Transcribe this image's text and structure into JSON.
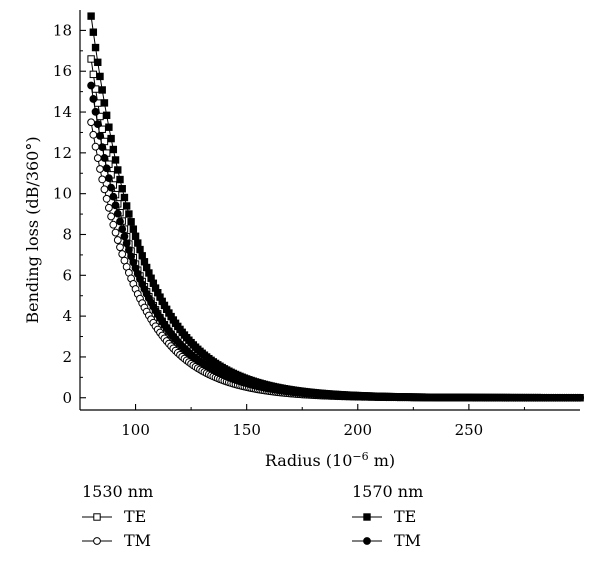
{
  "chart_data": {
    "type": "line",
    "title": "",
    "xlabel_prefix": "Radius (10",
    "xlabel_exponent": "−6",
    "xlabel_suffix": " m)",
    "ylabel": "Bending loss (dB/360°)",
    "xlim": [
      75,
      300
    ],
    "ylim": [
      -0.6,
      19
    ],
    "x_ticks": [
      100,
      150,
      200,
      250
    ],
    "x_tick_labels": [
      "100",
      "150",
      "200",
      "250"
    ],
    "y_ticks": [
      0,
      2,
      4,
      6,
      8,
      10,
      12,
      14,
      16,
      18
    ],
    "y_tick_labels": [
      "0",
      "2",
      "4",
      "6",
      "8",
      "10",
      "12",
      "14",
      "16",
      "18"
    ],
    "grid": false,
    "legend_groups": [
      {
        "label": "1530 nm",
        "entries": [
          "TE",
          "TM"
        ]
      },
      {
        "label": "1570 nm",
        "entries": [
          "TE",
          "TM"
        ]
      }
    ],
    "series": [
      {
        "group": "1530 nm",
        "mode": "TE",
        "marker": "open-square",
        "x_start": 80,
        "x_end": 300,
        "x_step": 1,
        "y_at_start": 16.6,
        "decay_per_unit": 0.0465
      },
      {
        "group": "1530 nm",
        "mode": "TM",
        "marker": "open-circle",
        "x_start": 80,
        "x_end": 300,
        "x_step": 1,
        "y_at_start": 13.5,
        "decay_per_unit": 0.0465
      },
      {
        "group": "1570 nm",
        "mode": "TE",
        "marker": "filled-square",
        "x_start": 80,
        "x_end": 300,
        "x_step": 1,
        "y_at_start": 18.7,
        "decay_per_unit": 0.043
      },
      {
        "group": "1570 nm",
        "mode": "TM",
        "marker": "filled-circle",
        "x_start": 80,
        "x_end": 300,
        "x_step": 1,
        "y_at_start": 15.3,
        "decay_per_unit": 0.044
      }
    ]
  }
}
